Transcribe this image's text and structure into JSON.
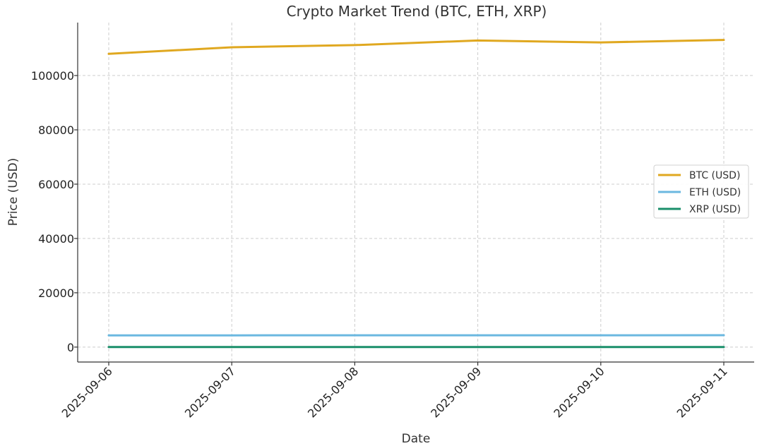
{
  "chart_data": {
    "type": "line",
    "title": "Crypto Market Trend (BTC, ETH, XRP)",
    "xlabel": "Date",
    "ylabel": "Price (USD)",
    "categories": [
      "2025-09-06",
      "2025-09-07",
      "2025-09-08",
      "2025-09-09",
      "2025-09-10",
      "2025-09-11"
    ],
    "yticks": [
      0,
      20000,
      40000,
      60000,
      80000,
      100000
    ],
    "ylim": [
      -5500,
      119500
    ],
    "grid": true,
    "legend_position": "center-right",
    "series": [
      {
        "name": "BTC (USD)",
        "color": "#e0a820",
        "values": [
          108000,
          110400,
          111200,
          112900,
          112200,
          113100
        ]
      },
      {
        "name": "ETH (USD)",
        "color": "#6bb8e0",
        "values": [
          4300,
          4320,
          4340,
          4350,
          4340,
          4380
        ]
      },
      {
        "name": "XRP (USD)",
        "color": "#1a8f6a",
        "values": [
          2.85,
          2.88,
          2.9,
          2.95,
          2.96,
          3.0
        ]
      }
    ]
  }
}
